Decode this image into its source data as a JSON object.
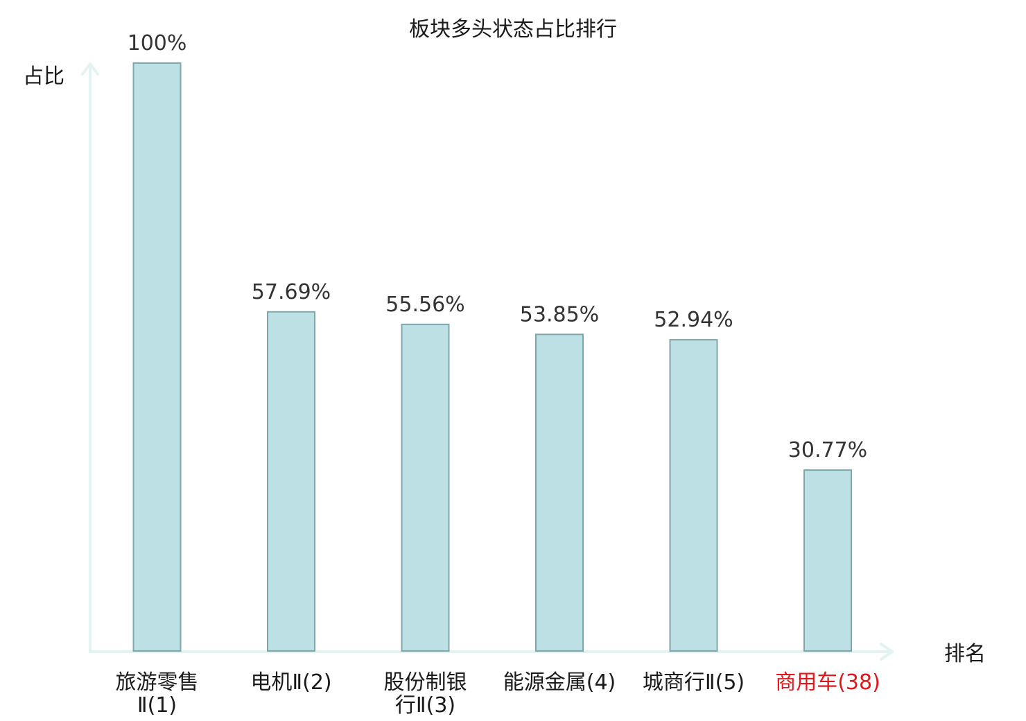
{
  "chart_data": {
    "type": "bar",
    "title": "板块多头状态占比排行",
    "ylabel": "占比",
    "xlabel": "排名",
    "ylim": [
      0,
      100
    ],
    "grid": false,
    "categories": [
      {
        "lines": [
          "旅游零售",
          "Ⅱ(1)"
        ],
        "highlight": false
      },
      {
        "lines": [
          "电机Ⅱ(2)"
        ],
        "highlight": false
      },
      {
        "lines": [
          "股份制银",
          "行Ⅱ(3)"
        ],
        "highlight": false
      },
      {
        "lines": [
          "能源金属(4)"
        ],
        "highlight": false
      },
      {
        "lines": [
          "城商行Ⅱ(5)"
        ],
        "highlight": false
      },
      {
        "lines": [
          "商用车(38)"
        ],
        "highlight": true
      }
    ],
    "values": [
      100,
      57.69,
      55.56,
      53.85,
      52.94,
      30.77
    ],
    "value_labels": [
      "100%",
      "57.69%",
      "55.56%",
      "53.85%",
      "52.94%",
      "30.77%"
    ],
    "colors": {
      "bar_fill": "#bce0e3",
      "bar_stroke": "#7fa7aa",
      "axis": "#e3f3f1",
      "highlight_text": "#e0161c"
    }
  }
}
